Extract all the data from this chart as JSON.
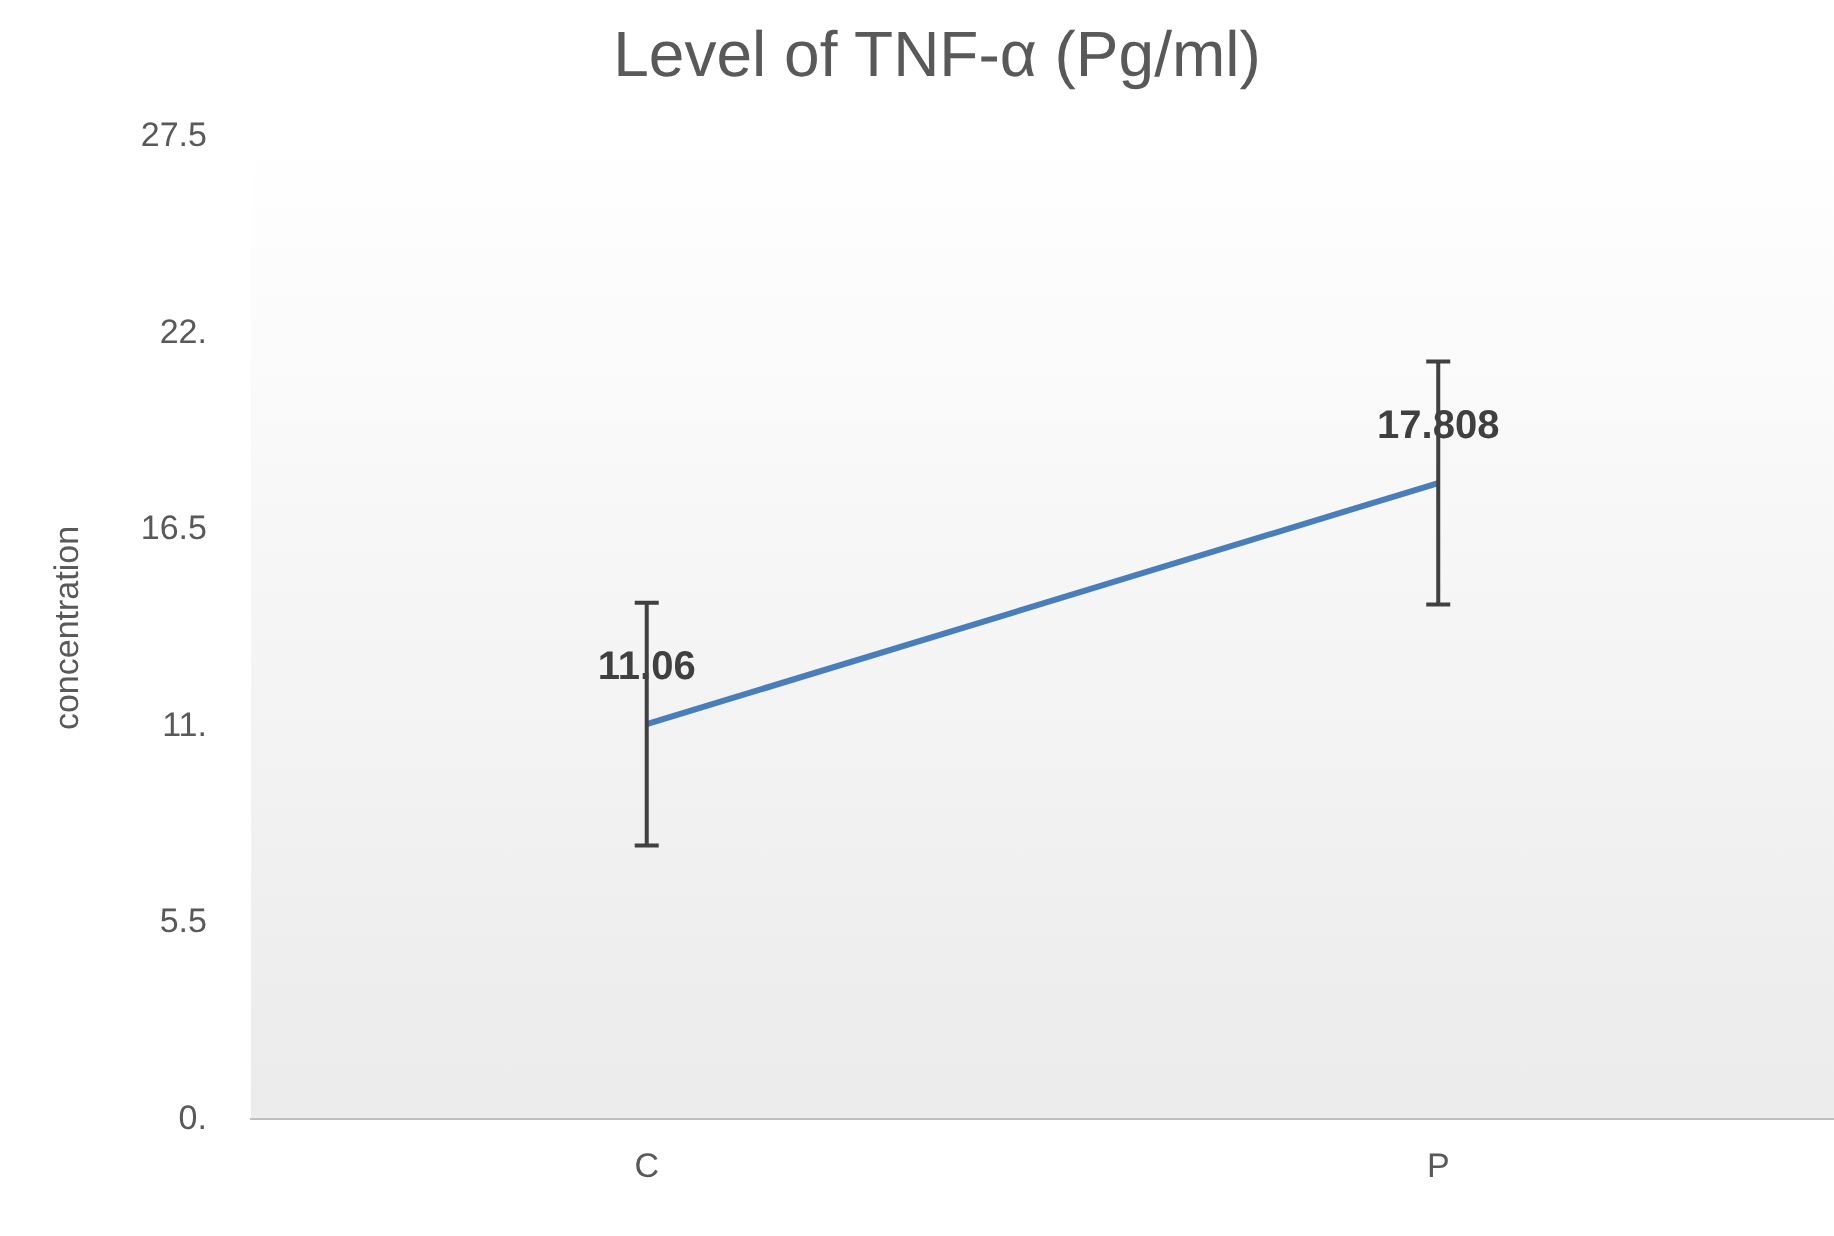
{
  "chart_data": {
    "type": "line",
    "title": "Level of TNF-α (Pg/ml)",
    "ylabel": "concentration",
    "categories": [
      "C",
      "P"
    ],
    "series": [
      {
        "color": "#4a7ebb",
        "values": [
          11.06,
          17.808
        ],
        "errors": [
          3.4,
          3.4
        ]
      }
    ],
    "ylim": [
      0,
      27.5
    ],
    "yticks": [
      {
        "value": 0,
        "label": "0."
      },
      5.5,
      {
        "value": 11,
        "label": "11."
      },
      16.5,
      {
        "value": 22,
        "label": "22."
      },
      27.5
    ],
    "data_labels": true,
    "grid": false,
    "legend": false,
    "marker": "none",
    "line_style": "solid"
  }
}
